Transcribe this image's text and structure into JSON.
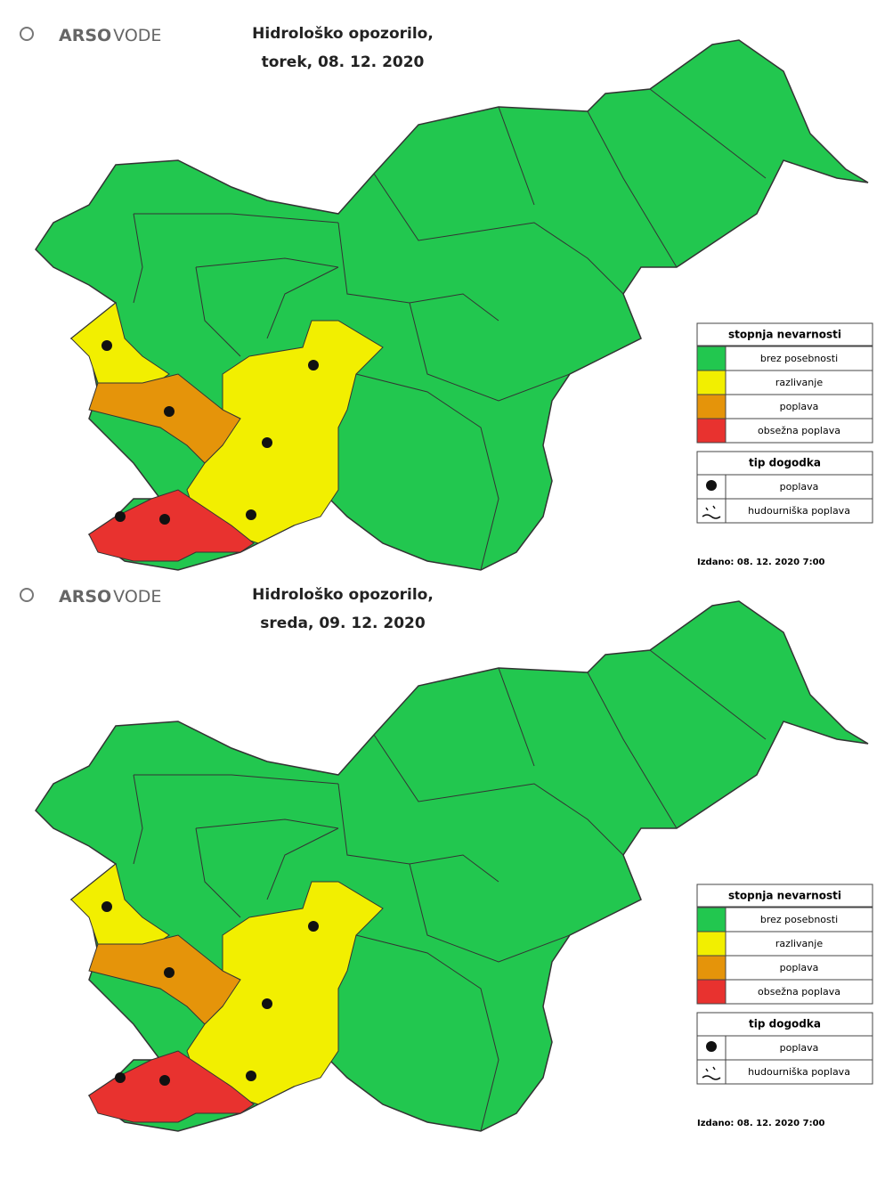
{
  "panels": [
    {
      "logo": {
        "brand": "ARSO",
        "sub": "VODE"
      },
      "title": [
        "Hidrološko opozorilo,",
        "torek, 08. 12. 2020"
      ],
      "legend": {
        "title": "stopnja nevarnosti",
        "items": [
          {
            "label": "brez posebnosti",
            "color": "#22c74f"
          },
          {
            "label": "razlivanje",
            "color": "#f2ef00"
          },
          {
            "label": "poplava",
            "color": "#e5940a"
          },
          {
            "label": "obsežna poplava",
            "color": "#e8322f"
          }
        ]
      },
      "event_legend": {
        "title": "tip dogodka",
        "items": [
          "poplava",
          "hudourniška poplava"
        ]
      },
      "issued": "Izdano: 08. 12. 2020 7:00"
    },
    {
      "logo": {
        "brand": "ARSO",
        "sub": "VODE"
      },
      "title": [
        "Hidrološko opozorilo,",
        "sreda, 09. 12. 2020"
      ],
      "legend": {
        "title": "stopnja nevarnosti",
        "items": [
          {
            "label": "brez posebnosti",
            "color": "#22c74f"
          },
          {
            "label": "razlivanje",
            "color": "#f2ef00"
          },
          {
            "label": "poplava",
            "color": "#e5940a"
          },
          {
            "label": "obsežna poplava",
            "color": "#e8322f"
          }
        ]
      },
      "event_legend": {
        "title": "tip dogodka",
        "items": [
          "poplava",
          "hudourniška poplava"
        ]
      },
      "issued": "Izdano: 08. 12. 2020 7:00"
    }
  ]
}
